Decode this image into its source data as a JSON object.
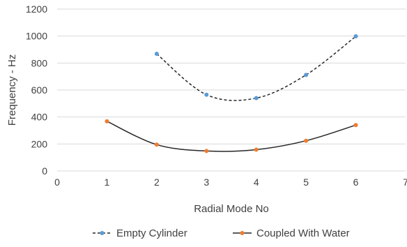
{
  "chart_data": {
    "type": "scatter",
    "xlabel": "Radial Mode No",
    "ylabel": "Frequency - Hz",
    "xlim": [
      0,
      7
    ],
    "ylim": [
      0,
      1200
    ],
    "x_ticks": [
      "0",
      "1",
      "2",
      "3",
      "4",
      "5",
      "6",
      "7"
    ],
    "y_ticks": [
      "0",
      "200",
      "400",
      "600",
      "800",
      "1000",
      "1200"
    ],
    "grid": "horizontal",
    "legend_position": "bottom",
    "series": [
      {
        "name": "Empty Cylinder",
        "color": "#5b9bd5",
        "line_color": "#262626",
        "line_style": "dashed",
        "smooth": true,
        "x": [
          2,
          3,
          4,
          5,
          6
        ],
        "y": [
          868,
          565,
          540,
          712,
          998
        ]
      },
      {
        "name": "Coupled With Water",
        "color": "#ed7d31",
        "line_color": "#262626",
        "line_style": "solid",
        "smooth": true,
        "x": [
          1,
          2,
          3,
          4,
          5,
          6
        ],
        "y": [
          368,
          195,
          148,
          158,
          224,
          340
        ]
      }
    ]
  }
}
